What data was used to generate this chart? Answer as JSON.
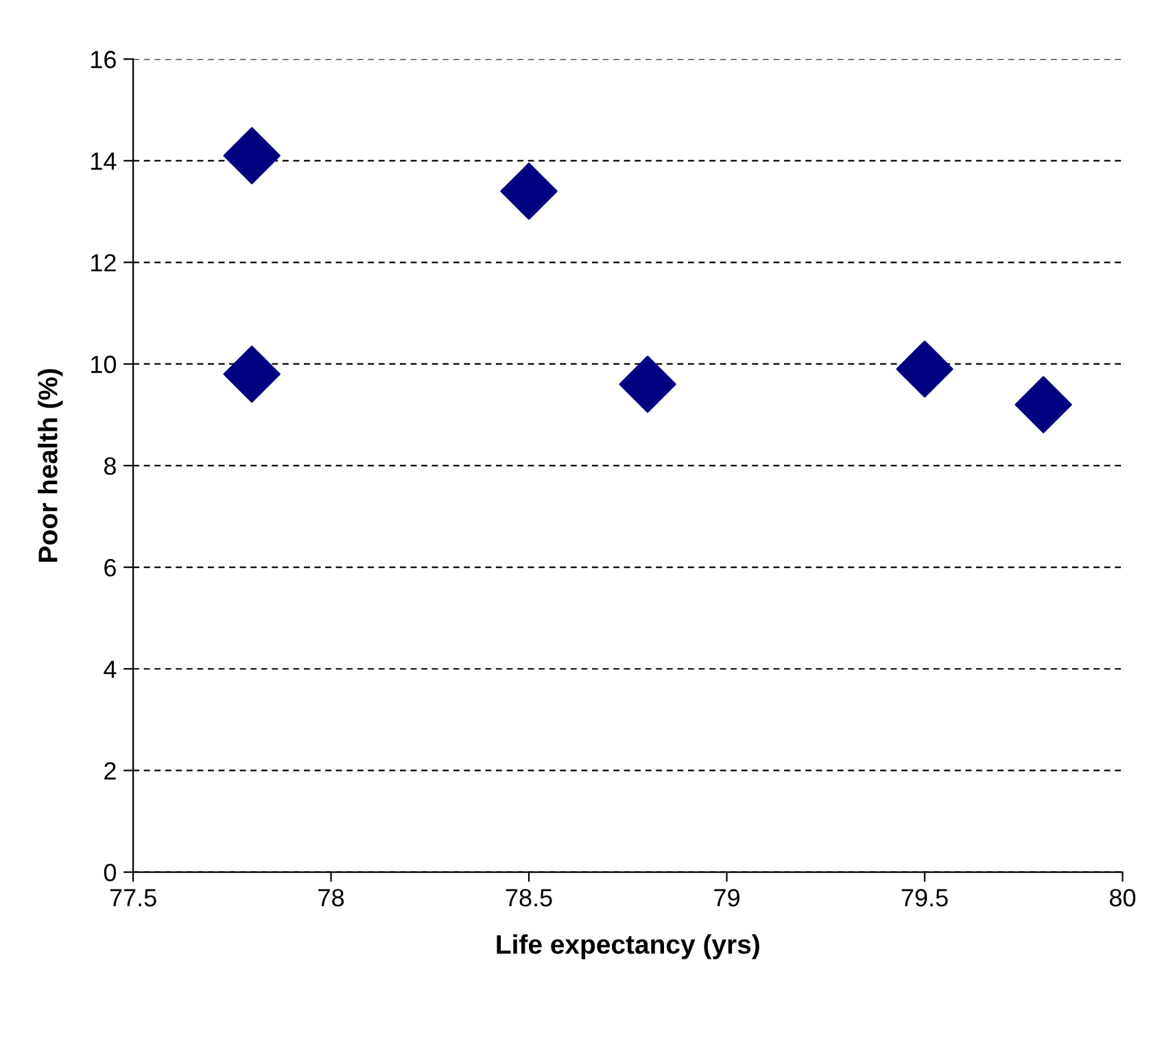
{
  "chart_data": {
    "type": "scatter",
    "xlabel": "Life expectancy (yrs)",
    "ylabel": "Poor health (%)",
    "series": [
      {
        "color": "#000080",
        "x": [
          77.8,
          77.8,
          78.5,
          78.8,
          79.5,
          79.8
        ],
        "values": [
          14.1,
          9.8,
          13.4,
          9.6,
          9.9,
          9.2
        ]
      }
    ],
    "xlim": [
      77.5,
      80
    ],
    "xticks": [
      77.5,
      78,
      78.5,
      79,
      79.5,
      80
    ],
    "ylim": [
      0,
      16
    ],
    "yticks": [
      0,
      2,
      4,
      6,
      8,
      10,
      12,
      14,
      16
    ],
    "grid": "y",
    "marker": "diamond"
  }
}
